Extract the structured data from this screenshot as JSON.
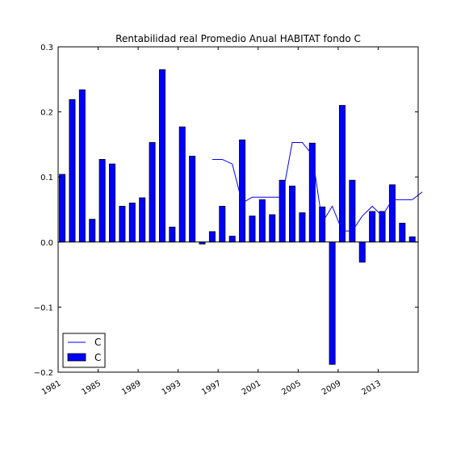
{
  "chart_data": {
    "type": "bar",
    "title": "Rentabilidad real Promedio Anual HABITAT fondo C",
    "xlabel": "",
    "ylabel": "",
    "ylim": [
      -0.2,
      0.3
    ],
    "yticks": [
      -0.2,
      -0.1,
      0.0,
      0.1,
      0.2,
      0.3
    ],
    "ytick_labels": [
      "−0.2",
      "−0.1",
      "0.0",
      "0.1",
      "0.2",
      "0.3"
    ],
    "xtick_labels": [
      "1981",
      "1985",
      "1989",
      "1993",
      "1997",
      "2001",
      "2005",
      "2009",
      "2013"
    ],
    "grid": false,
    "legend_position": "lower-left",
    "colors": {
      "bar": "#0000ff",
      "line": "#0000ff",
      "axes": "#000000"
    },
    "categories": [
      "1981",
      "1982",
      "1983",
      "1984",
      "1985",
      "1986",
      "1987",
      "1988",
      "1989",
      "1990",
      "1991",
      "1992",
      "1993",
      "1994",
      "1995",
      "1996",
      "1997",
      "1998",
      "1999",
      "2000",
      "2001",
      "2002",
      "2003",
      "2004",
      "2005",
      "2006",
      "2007",
      "2008",
      "2009",
      "2010",
      "2011",
      "2012",
      "2013",
      "2014",
      "2015",
      "2016",
      "2017"
    ],
    "series": [
      {
        "name": "C",
        "kind": "bar",
        "values": [
          0.104,
          0.219,
          0.234,
          0.035,
          0.127,
          0.12,
          0.055,
          0.06,
          0.068,
          0.153,
          0.265,
          0.023,
          0.177,
          0.132,
          -0.003,
          0.016,
          0.055,
          0.009,
          0.157,
          0.04,
          0.065,
          0.042,
          0.095,
          0.086,
          0.045,
          0.152,
          0.054,
          -0.188,
          0.21,
          0.095,
          -0.031,
          0.047,
          0.047,
          0.088,
          0.029,
          0.008,
          null
        ]
      },
      {
        "name": "C",
        "kind": "line",
        "values": [
          null,
          null,
          null,
          null,
          null,
          null,
          null,
          null,
          null,
          null,
          null,
          null,
          null,
          null,
          null,
          0.127,
          0.127,
          0.12,
          0.06,
          0.069,
          0.069,
          0.069,
          0.069,
          0.153,
          0.153,
          0.134,
          0.03,
          0.055,
          0.017,
          0.017,
          0.04,
          0.055,
          0.04,
          0.065,
          0.065,
          0.065,
          0.077
        ]
      }
    ]
  }
}
